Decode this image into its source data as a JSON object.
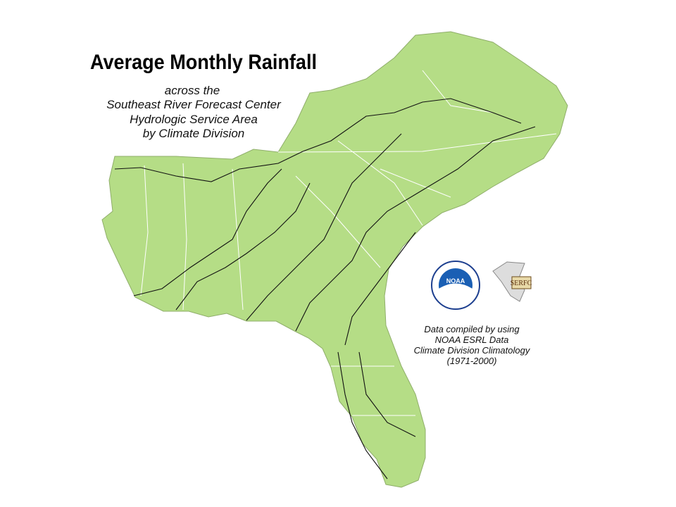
{
  "header": {
    "title": "Average Monthly Rainfall",
    "subtitle": [
      "across the",
      "Southeast River Forecast Center",
      "Hydrologic Service Area",
      "by Climate Division"
    ]
  },
  "credits": [
    "Data compiled by using",
    "NOAA ESRL Data",
    "Climate Division Climatology",
    "(1971-2000)"
  ],
  "logos": {
    "noaa": "NOAA",
    "serfc": "SERFC"
  }
}
